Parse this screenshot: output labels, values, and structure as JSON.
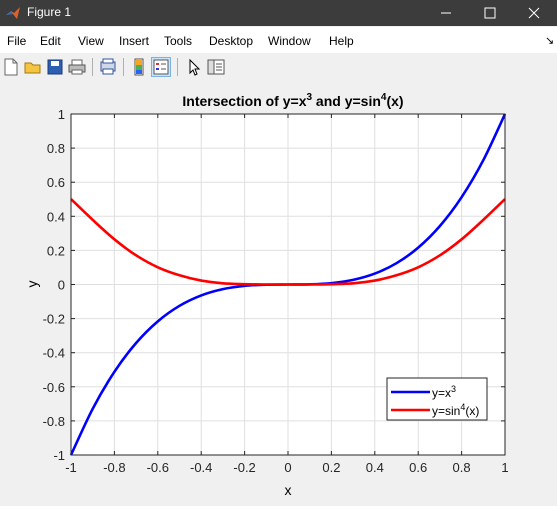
{
  "window": {
    "title": "Figure 1"
  },
  "menu": [
    "File",
    "Edit",
    "View",
    "Insert",
    "Tools",
    "Desktop",
    "Window",
    "Help"
  ],
  "toolbar": [
    "new-figure",
    "open-file",
    "save",
    "print",
    "print-preview",
    "colorbar",
    "legend",
    "pointer",
    "property-editor"
  ],
  "chart_data": {
    "type": "line",
    "title": "Intersection of y=x³ and y=sin⁴(x)",
    "title_parts": {
      "a": "Intersection of y=x",
      "a_sup": "3",
      "b": " and y=sin",
      "b_sup": "4",
      "c": "(x)"
    },
    "xlabel": "x",
    "ylabel": "y",
    "xlim": [
      -1,
      1
    ],
    "ylim": [
      -1,
      1
    ],
    "xticks": [
      "-1",
      "-0.8",
      "-0.6",
      "-0.4",
      "-0.2",
      "0",
      "0.2",
      "0.4",
      "0.6",
      "0.8",
      "1"
    ],
    "yticks": [
      "-1",
      "-0.8",
      "-0.6",
      "-0.4",
      "-0.2",
      "0",
      "0.2",
      "0.4",
      "0.6",
      "0.8",
      "1"
    ],
    "grid": true,
    "legend_position": "bottom-right",
    "x": [
      -1,
      -0.9,
      -0.8,
      -0.7,
      -0.6,
      -0.5,
      -0.4,
      -0.3,
      -0.2,
      -0.1,
      0,
      0.1,
      0.2,
      0.3,
      0.4,
      0.5,
      0.6,
      0.7,
      0.8,
      0.9,
      1
    ],
    "series": [
      {
        "name": "y=x³",
        "legend_base": "y=x",
        "legend_sup": "3",
        "legend_tail": "",
        "color": "#0000ff",
        "values": [
          -1,
          -0.729,
          -0.512,
          -0.343,
          -0.216,
          -0.125,
          -0.064,
          -0.027,
          -0.008,
          -0.001,
          0,
          0.001,
          0.008,
          0.027,
          0.064,
          0.125,
          0.216,
          0.343,
          0.512,
          0.729,
          1
        ]
      },
      {
        "name": "y=sin⁴(x)",
        "legend_base": "y=sin",
        "legend_sup": "4",
        "legend_tail": "(x)",
        "color": "#ff0000",
        "values": [
          0.501,
          0.379,
          0.265,
          0.171,
          0.101,
          0.054,
          0.023,
          0.007,
          0.002,
          0,
          0,
          0,
          0.002,
          0.007,
          0.023,
          0.054,
          0.101,
          0.171,
          0.265,
          0.379,
          0.501
        ]
      }
    ]
  }
}
